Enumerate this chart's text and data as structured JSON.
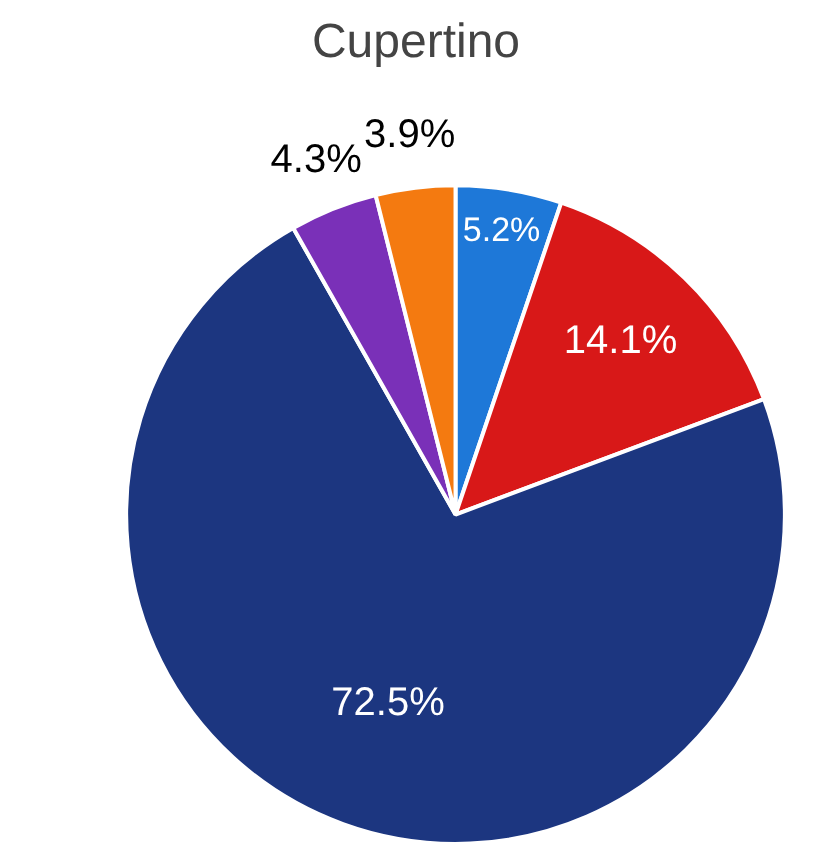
{
  "chart_data": {
    "type": "pie",
    "title": "Cupertino",
    "categories": [
      null,
      null,
      null,
      null,
      null
    ],
    "values": [
      5.2,
      14.1,
      72.5,
      4.3,
      3.9
    ],
    "colors": [
      "#1e78d8",
      "#d81818",
      "#1c3680",
      "#7a30b8",
      "#f47a10"
    ],
    "value_labels": [
      "5.2%",
      "14.1%",
      "72.5%",
      "4.3%",
      "3.9%"
    ]
  }
}
